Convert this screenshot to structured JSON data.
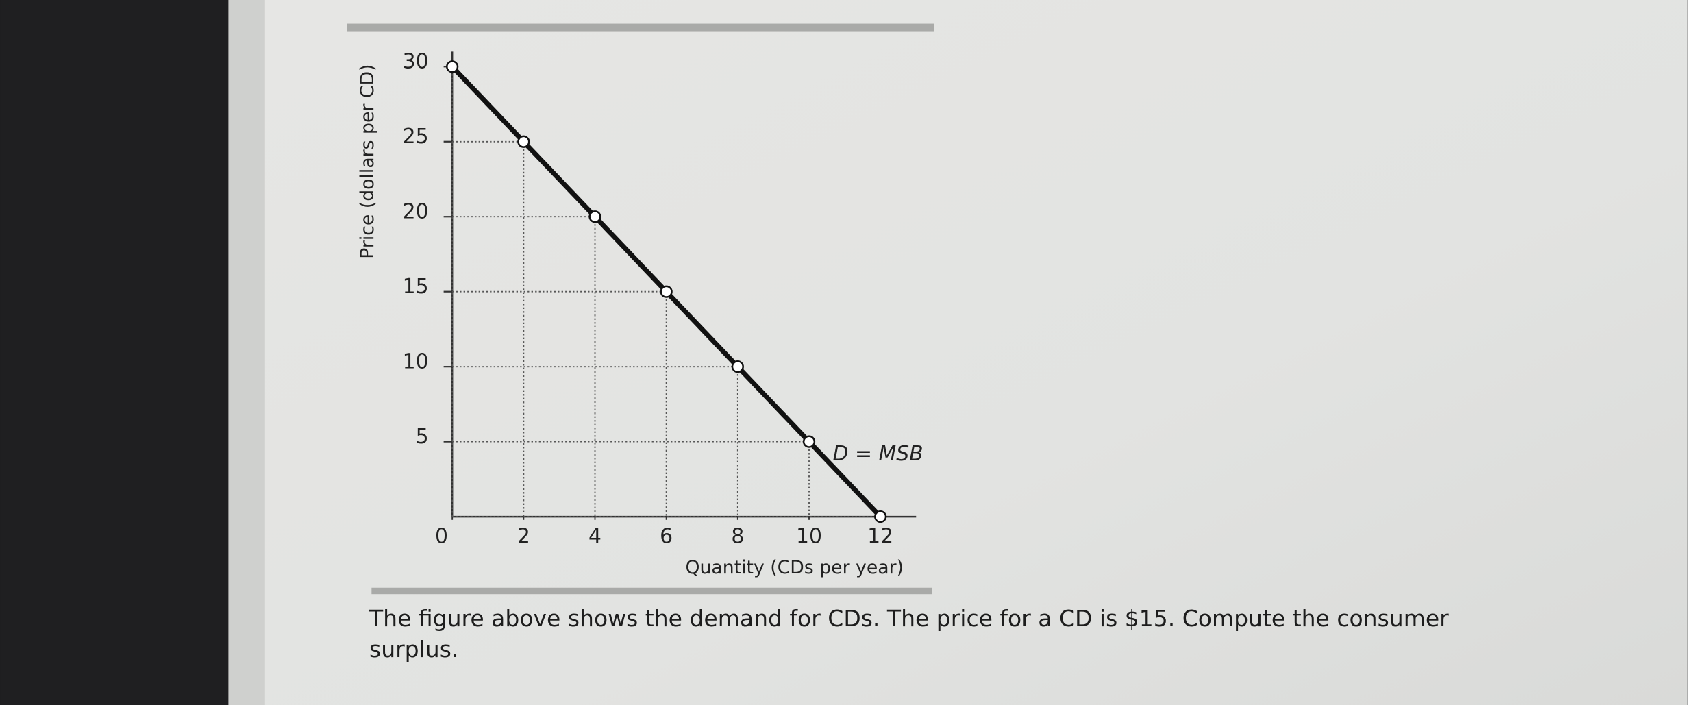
{
  "chart_data": {
    "type": "line",
    "x": [
      0,
      2,
      4,
      6,
      8,
      10,
      12
    ],
    "series": [
      {
        "name": "D = MSB",
        "color": "#111111",
        "values": [
          30,
          25,
          20,
          15,
          10,
          5,
          0
        ]
      }
    ],
    "xlabel": "Quantity (CDs per year)",
    "ylabel": "Price (dollars per CD)",
    "xlim": [
      0,
      13
    ],
    "ylim": [
      0,
      31
    ],
    "xticks": [
      0,
      2,
      4,
      6,
      8,
      10,
      12
    ],
    "yticks": [
      5,
      10,
      15,
      20,
      25,
      30
    ],
    "markers": true,
    "guide_lines": true
  },
  "question": "The figure above shows the demand for CDs. The price for a CD is $15. Compute the consumer surplus."
}
